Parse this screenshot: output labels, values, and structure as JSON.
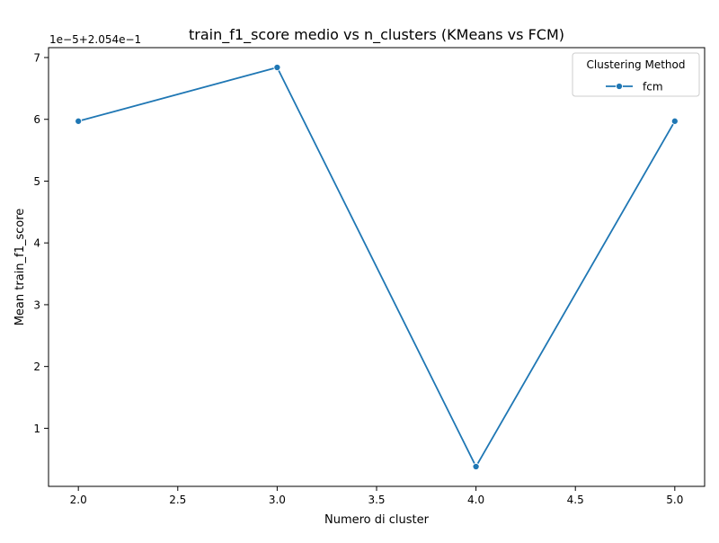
{
  "chart_data": {
    "type": "line",
    "title": "train_f1_score medio vs n_clusters (KMeans vs FCM)",
    "xlabel": "Numero di cluster",
    "ylabel": "Mean train_f1_score",
    "axis_offset_text": "1e−5+2.054e−1",
    "xlim": [
      1.85,
      5.15
    ],
    "ylim": [
      0.06,
      7.16
    ],
    "x_ticks": [
      {
        "value": 2.0,
        "label": "2.0"
      },
      {
        "value": 2.5,
        "label": "2.5"
      },
      {
        "value": 3.0,
        "label": "3.0"
      },
      {
        "value": 3.5,
        "label": "3.5"
      },
      {
        "value": 4.0,
        "label": "4.0"
      },
      {
        "value": 4.5,
        "label": "4.5"
      },
      {
        "value": 5.0,
        "label": "5.0"
      }
    ],
    "y_ticks": [
      {
        "value": 1,
        "label": "1"
      },
      {
        "value": 2,
        "label": "2"
      },
      {
        "value": 3,
        "label": "3"
      },
      {
        "value": 4,
        "label": "4"
      },
      {
        "value": 5,
        "label": "5"
      },
      {
        "value": 6,
        "label": "6"
      },
      {
        "value": 7,
        "label": "7"
      }
    ],
    "legend": {
      "title": "Clustering Method",
      "position": "top-right"
    },
    "grid": false,
    "series": [
      {
        "name": "fcm",
        "color": "#1f77b4",
        "marker": "circle",
        "points": [
          {
            "x": 2.0,
            "y": 5.97
          },
          {
            "x": 3.0,
            "y": 6.84
          },
          {
            "x": 4.0,
            "y": 0.38
          },
          {
            "x": 5.0,
            "y": 5.97
          }
        ]
      }
    ]
  }
}
